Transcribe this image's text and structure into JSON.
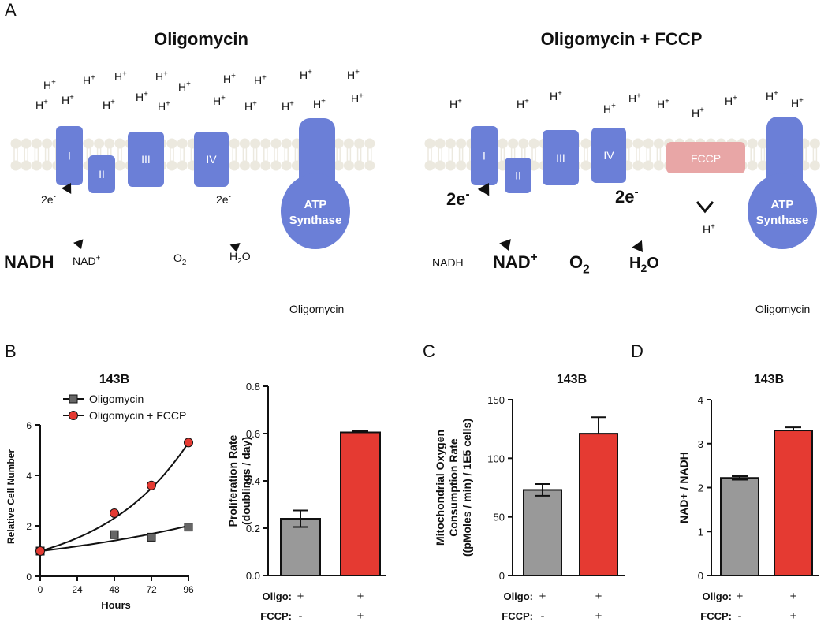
{
  "panels": {
    "a": "A",
    "b": "B",
    "c": "C",
    "d": "D"
  },
  "diagram": {
    "left_title": "Oligomycin",
    "right_title": "Oligomycin + FCCP",
    "proton": "H",
    "proton_sup": "+",
    "complexes": [
      "I",
      "II",
      "III",
      "IV"
    ],
    "fccp_label": "FCCP",
    "atp_line1": "ATP",
    "atp_line2": "Synthase",
    "electrons": "2e",
    "electrons_sup": "-",
    "nadh": "NADH",
    "nad": "NAD",
    "nad_sup": "+",
    "o2": "O",
    "o2_sub": "2",
    "h2o_h": "H",
    "h2o_sub": "2",
    "h2o_o": "O",
    "oligomycin_note": "Oligomycin",
    "colors": {
      "complex": "#6b7fd7",
      "fccp": "#e8a6a6",
      "membrane": "#ece9df"
    }
  },
  "chart_data": [
    {
      "type": "line",
      "title": "143B",
      "xlabel": "Hours",
      "ylabel": "Relative Cell Number",
      "xlim": [
        0,
        96
      ],
      "ylim": [
        0,
        6
      ],
      "xticks": [
        0,
        24,
        48,
        72,
        96
      ],
      "yticks": [
        0,
        2,
        4,
        6
      ],
      "legend": "top-left",
      "series": [
        {
          "name": "Oligomycin",
          "marker": "square",
          "color": "#666666",
          "x": [
            0,
            48,
            72,
            96
          ],
          "y": [
            1.0,
            1.65,
            1.55,
            1.95
          ],
          "err": [
            0,
            0.1,
            0.1,
            0.15
          ],
          "fit": [
            1.0,
            2.0
          ]
        },
        {
          "name": "Oligomycin + FCCP",
          "marker": "circle",
          "color": "#e53a32",
          "x": [
            0,
            48,
            72,
            96
          ],
          "y": [
            1.0,
            2.5,
            3.6,
            5.3
          ],
          "err": [
            0,
            0.08,
            0.18,
            0.08
          ],
          "fit": [
            1.0,
            5.3
          ]
        }
      ]
    },
    {
      "type": "bar",
      "ylabel_line1": "Proliferation Rate",
      "ylabel_line2": "(doublings / day)",
      "ylim": [
        0,
        0.8
      ],
      "yticks": [
        "0.0",
        "0.2",
        "0.4",
        "0.6",
        "0.8"
      ],
      "values": [
        0.24,
        0.605
      ],
      "errors": [
        0.035,
        0.006
      ],
      "colors": [
        "#999999",
        "#e53a32"
      ],
      "conditions": {
        "oligo_label": "Oligo:",
        "fccp_label": "FCCP:",
        "oligo": [
          "+",
          "+"
        ],
        "fccp": [
          "-",
          "+"
        ]
      }
    },
    {
      "type": "bar",
      "title": "143B",
      "ylabel_line1": "Mitochondrial Oxygen",
      "ylabel_line2": "Consumption Rate",
      "ylabel_line3": "((pMoles / min) / 1E5 cells)",
      "ylim": [
        0,
        150
      ],
      "yticks": [
        "0",
        "50",
        "100",
        "150"
      ],
      "values": [
        73,
        121
      ],
      "errors": [
        5,
        14
      ],
      "colors": [
        "#999999",
        "#e53a32"
      ],
      "conditions": {
        "oligo_label": "Oligo:",
        "fccp_label": "FCCP:",
        "oligo": [
          "+",
          "+"
        ],
        "fccp": [
          "-",
          "+"
        ]
      }
    },
    {
      "type": "bar",
      "title": "143B",
      "ylabel": "NAD+ / NADH",
      "ylim": [
        0,
        4
      ],
      "yticks": [
        "0",
        "1",
        "2",
        "3",
        "4"
      ],
      "values": [
        2.22,
        3.3
      ],
      "errors": [
        0.04,
        0.07
      ],
      "colors": [
        "#999999",
        "#e53a32"
      ],
      "conditions": {
        "oligo_label": "Oligo:",
        "fccp_label": "FCCP:",
        "oligo": [
          "+",
          "+"
        ],
        "fccp": [
          "-",
          "+"
        ]
      }
    }
  ]
}
